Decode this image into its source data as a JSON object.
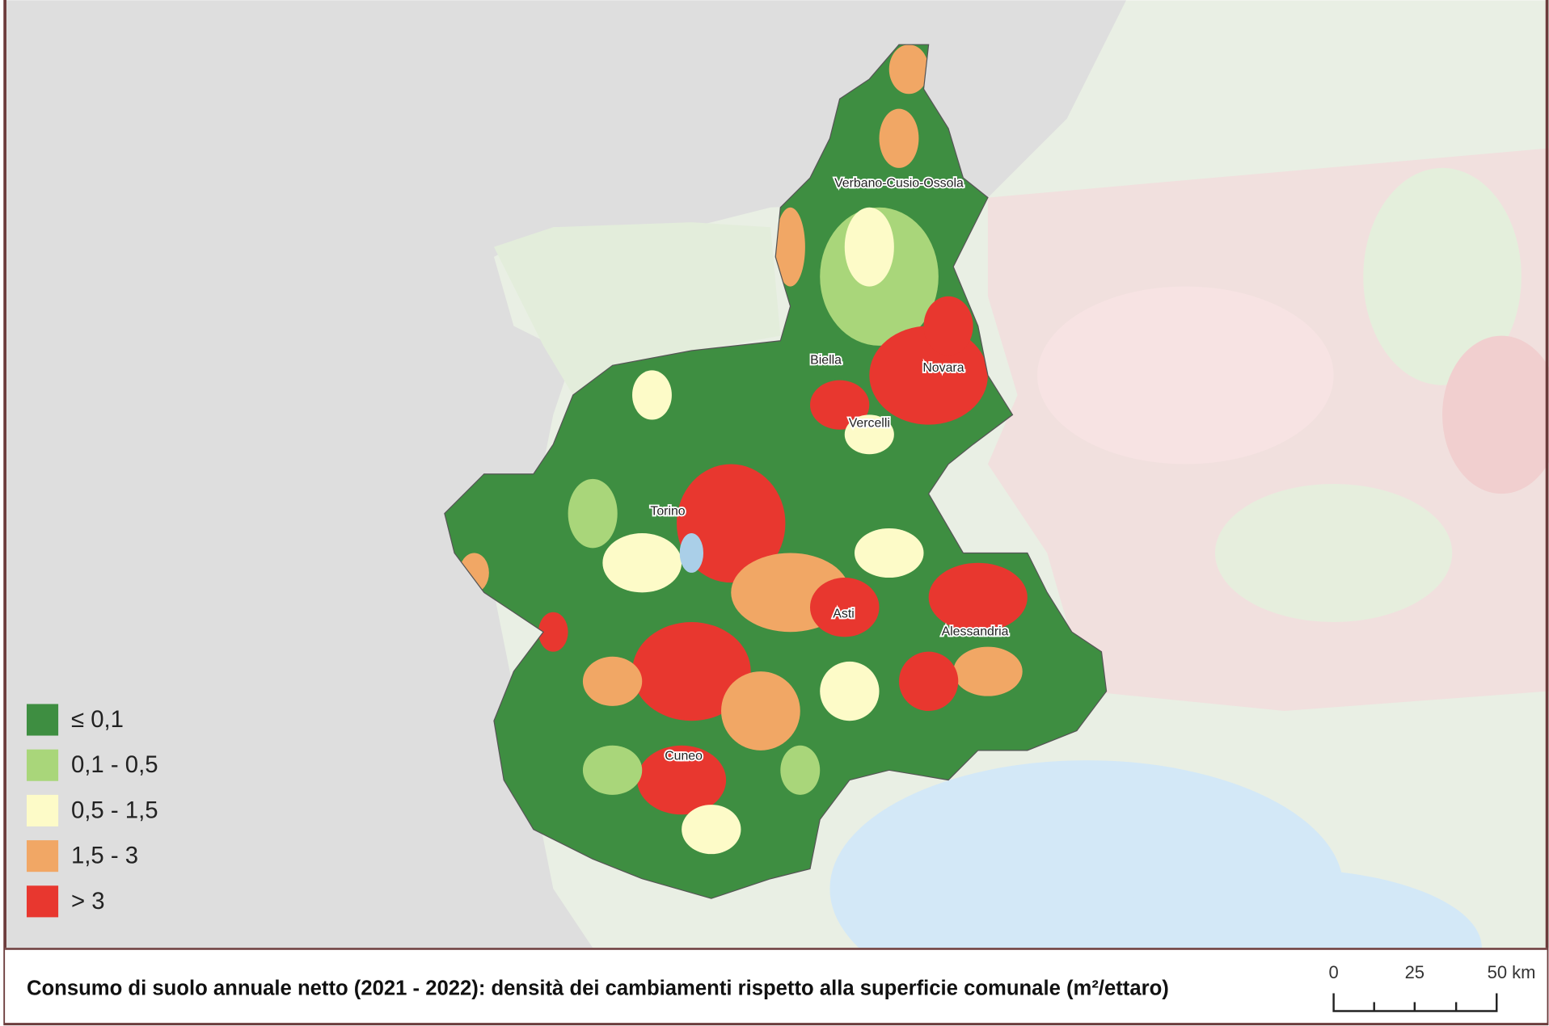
{
  "map": {
    "title": "Consumo di suolo annuale netto (2021 - 2022): densità dei cambiamenti rispetto alla superficie comunale (m²/ettaro)",
    "legend": [
      {
        "label": "≤ 0,1",
        "color": "#3e8e41"
      },
      {
        "label": "0,1 - 0,5",
        "color": "#a9d67a"
      },
      {
        "label": "0,5 - 1,5",
        "color": "#fdfbc8"
      },
      {
        "label": "1,5 - 3",
        "color": "#f1a765"
      },
      {
        "label": "> 3",
        "color": "#e8372f"
      }
    ],
    "places": [
      "Verbano-Cusio-Ossola",
      "Biella",
      "Novara",
      "Vercelli",
      "Torino",
      "Asti",
      "Alessandria",
      "Cuneo"
    ],
    "scale_bar": [
      "0",
      "25",
      "50 km"
    ]
  }
}
